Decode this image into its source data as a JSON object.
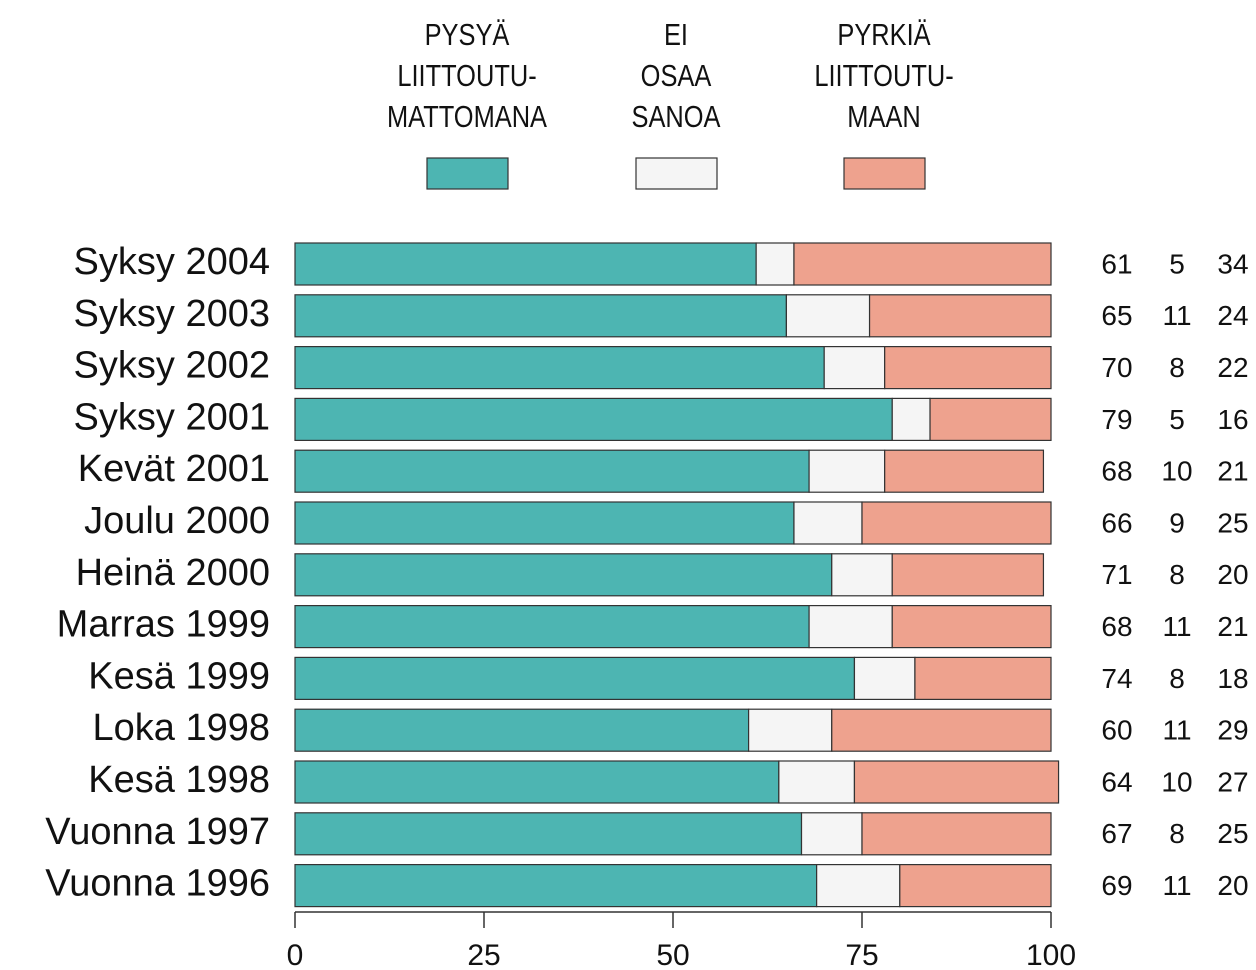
{
  "chart_data": {
    "type": "stacked-barh",
    "categories": [
      "Syksy 2004",
      "Syksy 2003",
      "Syksy 2002",
      "Syksy 2001",
      "Kevät 2001",
      "Joulu 2000",
      "Heinä 2000",
      "Marras 1999",
      "Kesä 1999",
      "Loka 1998",
      "Kesä 1998",
      "Vuonna 1997",
      "Vuonna 1996"
    ],
    "series": [
      {
        "name": "PYSYÄ\nLIITTOUTU-\nMATTOMANA",
        "color": "#4db5b2",
        "values": [
          61,
          65,
          70,
          79,
          68,
          66,
          71,
          68,
          74,
          60,
          64,
          67,
          69
        ]
      },
      {
        "name": "EI\nOSAA\nSANOA",
        "color": "#f5f5f5",
        "values": [
          5,
          11,
          8,
          5,
          10,
          9,
          8,
          11,
          8,
          11,
          10,
          8,
          11
        ]
      },
      {
        "name": "PYRKIÄ\nLIITTOUTU-\nMAAN",
        "color": "#eea28e",
        "values": [
          34,
          24,
          22,
          16,
          21,
          25,
          20,
          21,
          18,
          29,
          27,
          25,
          20
        ]
      }
    ],
    "xlim": [
      0,
      100
    ],
    "xticks": [
      0,
      25,
      50,
      75,
      100
    ]
  }
}
